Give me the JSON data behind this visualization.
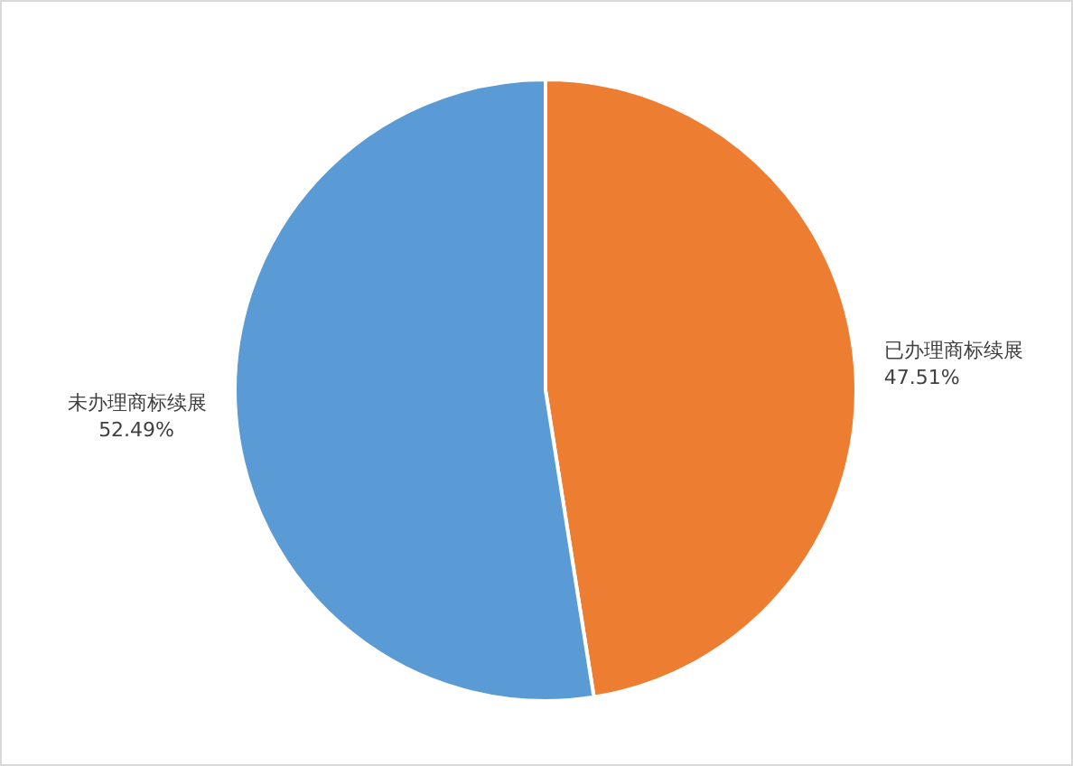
{
  "chart_data": {
    "type": "pie",
    "categories": [
      "已办理商标续展",
      "未办理商标续展"
    ],
    "values": [
      47.51,
      52.49
    ],
    "colors": [
      "#ed7d31",
      "#5b9bd5"
    ],
    "value_labels": [
      "47.51%",
      "52.49%"
    ],
    "legend": false
  }
}
